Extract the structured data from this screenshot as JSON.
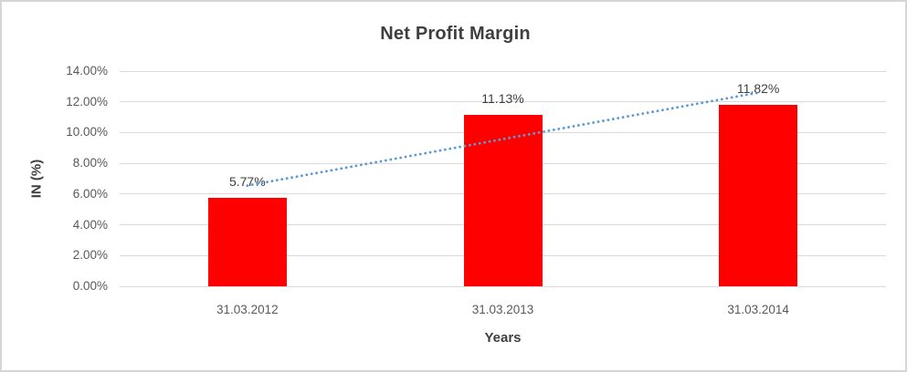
{
  "frame": {
    "background": "#FFFFFF",
    "border_color": "#D6D6D6"
  },
  "chart_data": {
    "type": "bar",
    "title": "Net Profit Margin",
    "categories": [
      "31.03.2012",
      "31.03.2013",
      "31.03.2014"
    ],
    "values": [
      5.77,
      11.13,
      11.82
    ],
    "data_labels": [
      "5.77%",
      "11.13%",
      "11.82%"
    ],
    "xlabel": "Years",
    "ylabel": "IN (%)",
    "ylim": [
      0,
      14
    ],
    "ytick_step": 2,
    "ytick_labels": [
      "0.00%",
      "2.00%",
      "4.00%",
      "6.00%",
      "8.00%",
      "10.00%",
      "12.00%",
      "14.00%"
    ],
    "grid": true,
    "gridline_color": "#D9D9D9",
    "legend": "none",
    "bar_color": "#FF0000",
    "title_color": "#3F3F3F",
    "axis_title_color": "#3F3F3F",
    "tick_label_color": "#595959",
    "data_label_color": "#3F3F3F",
    "trendline": {
      "type": "linear",
      "style": "dotted",
      "color": "#5B9BD5",
      "start_value": 6.55,
      "end_value": 12.6
    }
  }
}
